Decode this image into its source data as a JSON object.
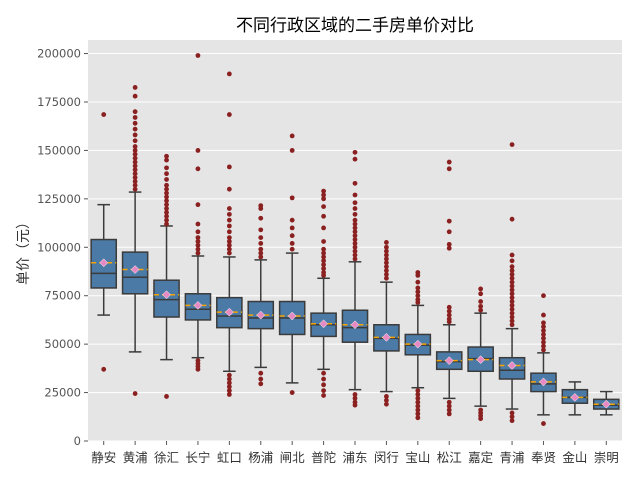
{
  "chart_data": {
    "type": "box",
    "title": "不同行政区域的二手房单价对比",
    "xlabel": "",
    "ylabel": "单价（元）",
    "ylim": [
      0,
      207000
    ],
    "yticks": [
      0,
      25000,
      50000,
      75000,
      100000,
      125000,
      150000,
      175000,
      200000
    ],
    "grid": true,
    "legend": "none",
    "colors": {
      "plot_bg": "#e5e5e5",
      "grid": "#ffffff",
      "box_fill": "#4a7aa5",
      "box_edge": "#3b3b3b",
      "median": "#3b3b3b",
      "mean_line": "#f5a300",
      "mean_marker": "#e78ac3",
      "outlier": "#8b2020"
    },
    "categories": [
      "静安",
      "黄浦",
      "徐汇",
      "长宁",
      "虹口",
      "杨浦",
      "闸北",
      "普陀",
      "浦东",
      "闵行",
      "宝山",
      "松江",
      "嘉定",
      "青浦",
      "奉贤",
      "金山",
      "崇明"
    ],
    "series": [
      {
        "category": "静安",
        "whisker_low": 65000,
        "q1": 79000,
        "median": 86500,
        "q3": 104000,
        "whisker_high": 122000,
        "mean": 92000,
        "outliers": [
          37000,
          168500
        ]
      },
      {
        "category": "黄浦",
        "whisker_low": 46000,
        "q1": 76000,
        "median": 84500,
        "q3": 97500,
        "whisker_high": 128500,
        "mean": 88500,
        "outliers": [
          24500,
          130000,
          132000,
          134000,
          136000,
          138000,
          140000,
          142000,
          144000,
          146000,
          148000,
          150000,
          152000,
          155000,
          158000,
          161000,
          164000,
          167000,
          170000,
          178000,
          182500
        ]
      },
      {
        "category": "徐汇",
        "whisker_low": 42000,
        "q1": 64000,
        "median": 73000,
        "q3": 83000,
        "whisker_high": 111000,
        "mean": 75500,
        "outliers": [
          23000,
          112000,
          114000,
          116000,
          118000,
          120000,
          122000,
          124000,
          126000,
          128000,
          130000,
          132000,
          135000,
          138000,
          141000,
          145000,
          147000
        ]
      },
      {
        "category": "长宁",
        "whisker_low": 43000,
        "q1": 62500,
        "median": 68000,
        "q3": 76000,
        "whisker_high": 95500,
        "mean": 70000,
        "outliers": [
          37000,
          38500,
          40000,
          41500,
          97000,
          99000,
          101000,
          103000,
          105000,
          108000,
          112000,
          122000,
          140500,
          150000,
          199000
        ]
      },
      {
        "category": "虹口",
        "whisker_low": 36000,
        "q1": 58500,
        "median": 64500,
        "q3": 74000,
        "whisker_high": 95000,
        "mean": 66500,
        "outliers": [
          24000,
          26000,
          28000,
          30000,
          32000,
          34000,
          97000,
          99000,
          101000,
          103000,
          105000,
          108000,
          111000,
          114000,
          117000,
          120000,
          130000,
          141500,
          168500,
          189500
        ]
      },
      {
        "category": "杨浦",
        "whisker_low": 38000,
        "q1": 58000,
        "median": 63500,
        "q3": 72000,
        "whisker_high": 93500,
        "mean": 65000,
        "outliers": [
          29500,
          32000,
          35000,
          95000,
          97000,
          99000,
          102000,
          105000,
          109000,
          115000,
          120000,
          121500
        ]
      },
      {
        "category": "闸北",
        "whisker_low": 30000,
        "q1": 55000,
        "median": 63500,
        "q3": 72000,
        "whisker_high": 97000,
        "mean": 64500,
        "outliers": [
          25000,
          99000,
          102000,
          106000,
          110000,
          114000,
          125500,
          150000,
          157500
        ]
      },
      {
        "category": "普陀",
        "whisker_low": 37000,
        "q1": 54000,
        "median": 60000,
        "q3": 66000,
        "whisker_high": 84000,
        "mean": 60500,
        "outliers": [
          23500,
          26000,
          29000,
          32000,
          35000,
          85500,
          87000,
          89000,
          91000,
          93000,
          95000,
          97000,
          99000,
          103000,
          110000,
          116000,
          121000,
          125000,
          127000,
          129000
        ]
      },
      {
        "category": "浦东",
        "whisker_low": 26500,
        "q1": 51000,
        "median": 58500,
        "q3": 67500,
        "whisker_high": 92500,
        "mean": 60000,
        "outliers": [
          18500,
          20000,
          22000,
          24000,
          94000,
          96000,
          98000,
          100000,
          102000,
          104000,
          106000,
          108000,
          110000,
          112000,
          114000,
          117000,
          120000,
          123000,
          127000,
          133000,
          145500,
          149000
        ]
      },
      {
        "category": "闵行",
        "whisker_low": 25500,
        "q1": 46500,
        "median": 53000,
        "q3": 60000,
        "whisker_high": 82000,
        "mean": 53500,
        "outliers": [
          19000,
          21000,
          23000,
          84000,
          86000,
          88000,
          90000,
          92000,
          94000,
          96000,
          98000,
          100000,
          102500
        ]
      },
      {
        "category": "宝山",
        "whisker_low": 27500,
        "q1": 44500,
        "median": 49500,
        "q3": 55000,
        "whisker_high": 70000,
        "mean": 50000,
        "outliers": [
          12000,
          14000,
          16000,
          18000,
          20000,
          22000,
          24000,
          26000,
          71500,
          73000,
          75000,
          77000,
          79000,
          82000,
          85500,
          87000
        ]
      },
      {
        "category": "松江",
        "whisker_low": 22000,
        "q1": 37000,
        "median": 41000,
        "q3": 46000,
        "whisker_high": 60000,
        "mean": 41500,
        "outliers": [
          14000,
          16000,
          18000,
          20000,
          61500,
          63000,
          65000,
          67000,
          69000,
          99500,
          101500,
          108000,
          113500,
          140500,
          144000
        ]
      },
      {
        "category": "嘉定",
        "whisker_low": 18000,
        "q1": 36000,
        "median": 42500,
        "q3": 48500,
        "whisker_high": 66000,
        "mean": 42000,
        "outliers": [
          11500,
          13000,
          14500,
          16000,
          67500,
          69500,
          72000,
          76000,
          78500
        ]
      },
      {
        "category": "青浦",
        "whisker_low": 16500,
        "q1": 32000,
        "median": 36500,
        "q3": 43000,
        "whisker_high": 58000,
        "mean": 39000,
        "outliers": [
          10500,
          12500,
          14500,
          60000,
          62000,
          64000,
          66000,
          68000,
          70000,
          72000,
          74000,
          76000,
          78000,
          80000,
          82000,
          84000,
          86000,
          88000,
          90000,
          93000,
          96000,
          114500,
          153000
        ]
      },
      {
        "category": "奉贤",
        "whisker_low": 13500,
        "q1": 25500,
        "median": 29500,
        "q3": 35000,
        "whisker_high": 45500,
        "mean": 30500,
        "outliers": [
          9000,
          47000,
          49000,
          51000,
          53000,
          55000,
          57000,
          59000,
          61000,
          65000,
          75000
        ]
      },
      {
        "category": "金山",
        "whisker_low": 13500,
        "q1": 19500,
        "median": 22500,
        "q3": 26500,
        "whisker_high": 30500,
        "mean": 22500,
        "outliers": []
      },
      {
        "category": "崇明",
        "whisker_low": 13500,
        "q1": 16500,
        "median": 18500,
        "q3": 21500,
        "whisker_high": 25500,
        "mean": 19000,
        "outliers": []
      }
    ]
  }
}
